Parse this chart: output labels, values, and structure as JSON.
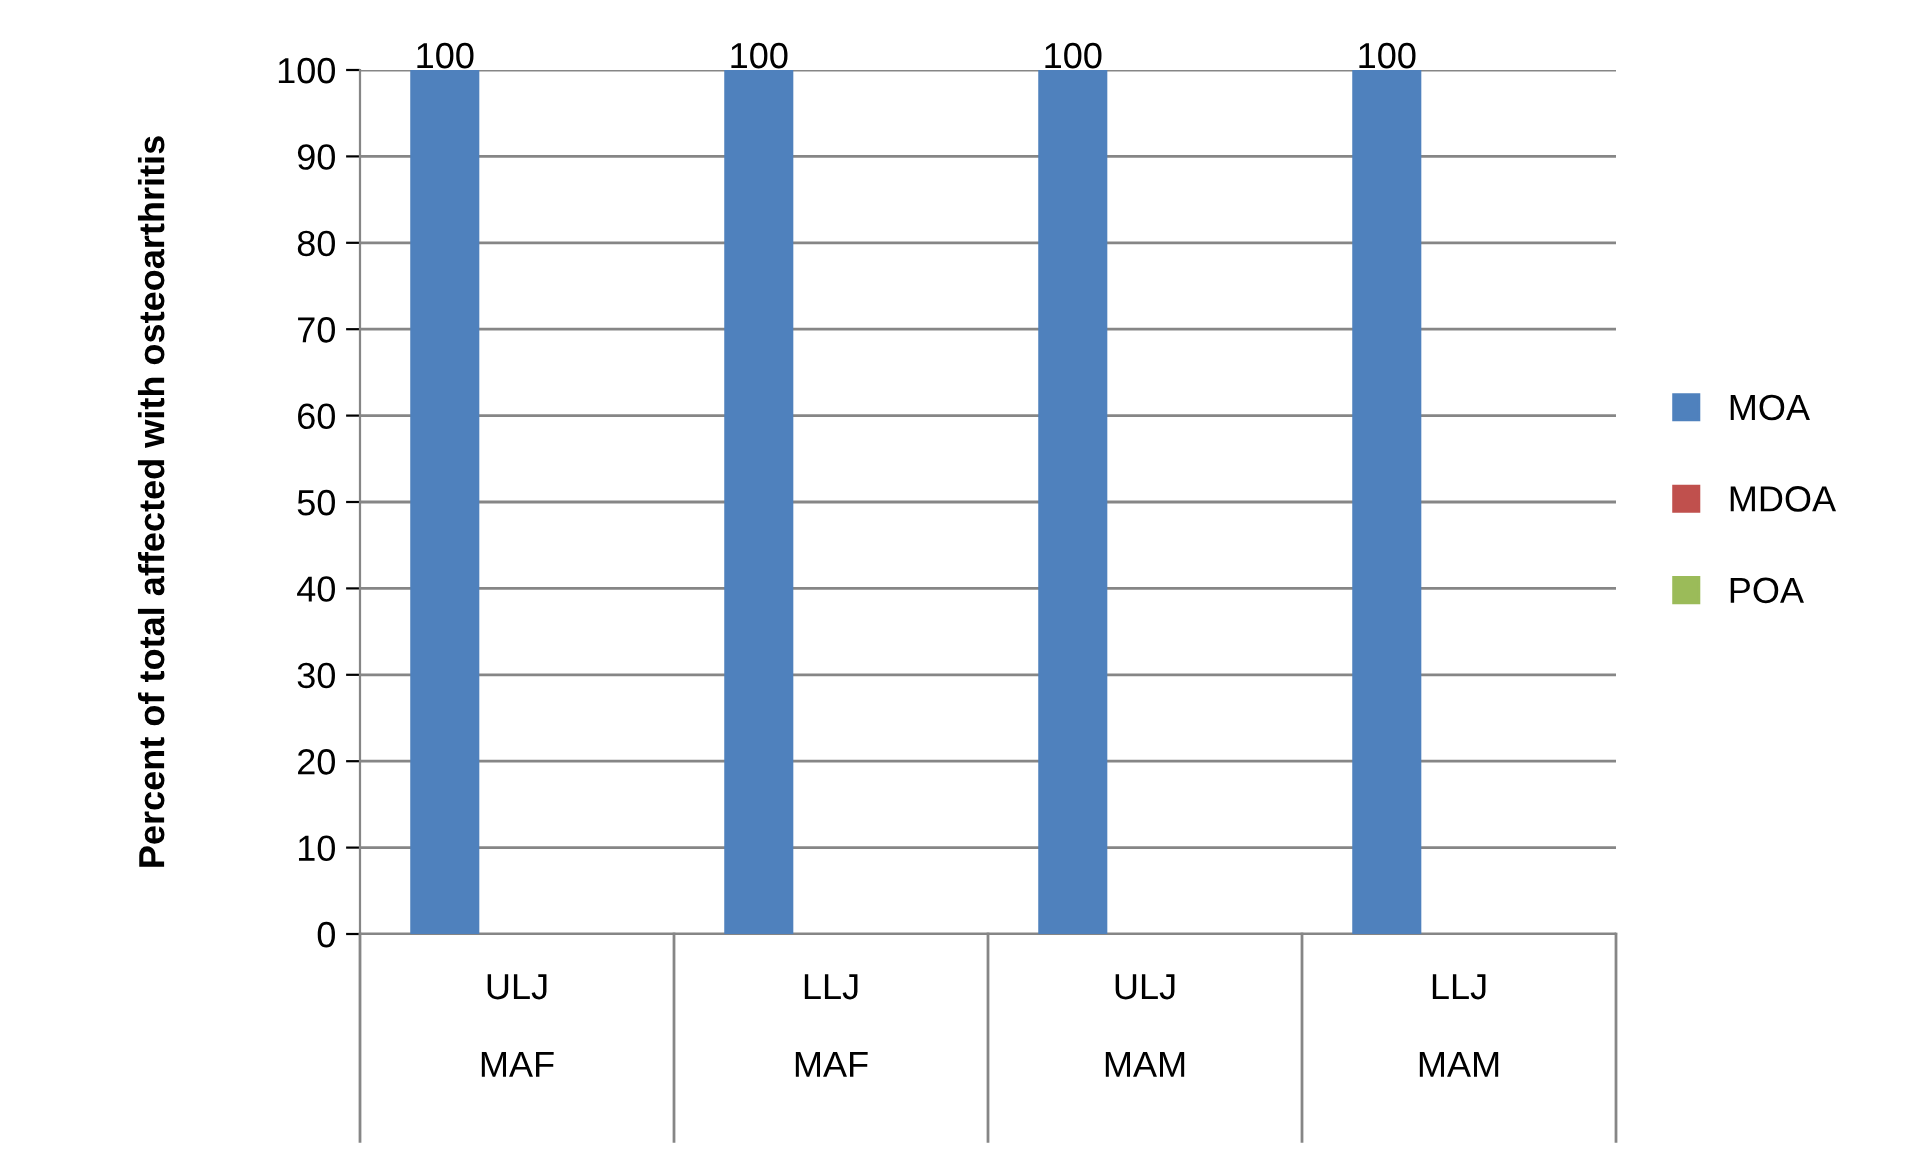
{
  "chart_data": {
    "type": "bar",
    "ylabel": "Percent of total affected with osteoarthritis",
    "categories": [
      "ULJ\n\nMAF",
      "LLJ\n\nMAF",
      "ULJ\n\nMAM",
      "LLJ\n\nMAM"
    ],
    "series": [
      {
        "name": "MOA",
        "color": "#4f81bd",
        "values": [
          100,
          100,
          100,
          100
        ],
        "value_labels": [
          "100",
          "100",
          "100",
          "100"
        ]
      },
      {
        "name": "MDOA",
        "color": "#c0504d",
        "values": [
          0,
          0,
          0,
          0
        ]
      },
      {
        "name": "POA",
        "color": "#9bbb59",
        "values": [
          0,
          0,
          0,
          0
        ]
      }
    ],
    "ylim": [
      0,
      100
    ],
    "yticks": [
      0,
      10,
      20,
      30,
      40,
      50,
      60,
      70,
      80,
      90,
      100
    ],
    "grid": "y",
    "legend": "right"
  }
}
